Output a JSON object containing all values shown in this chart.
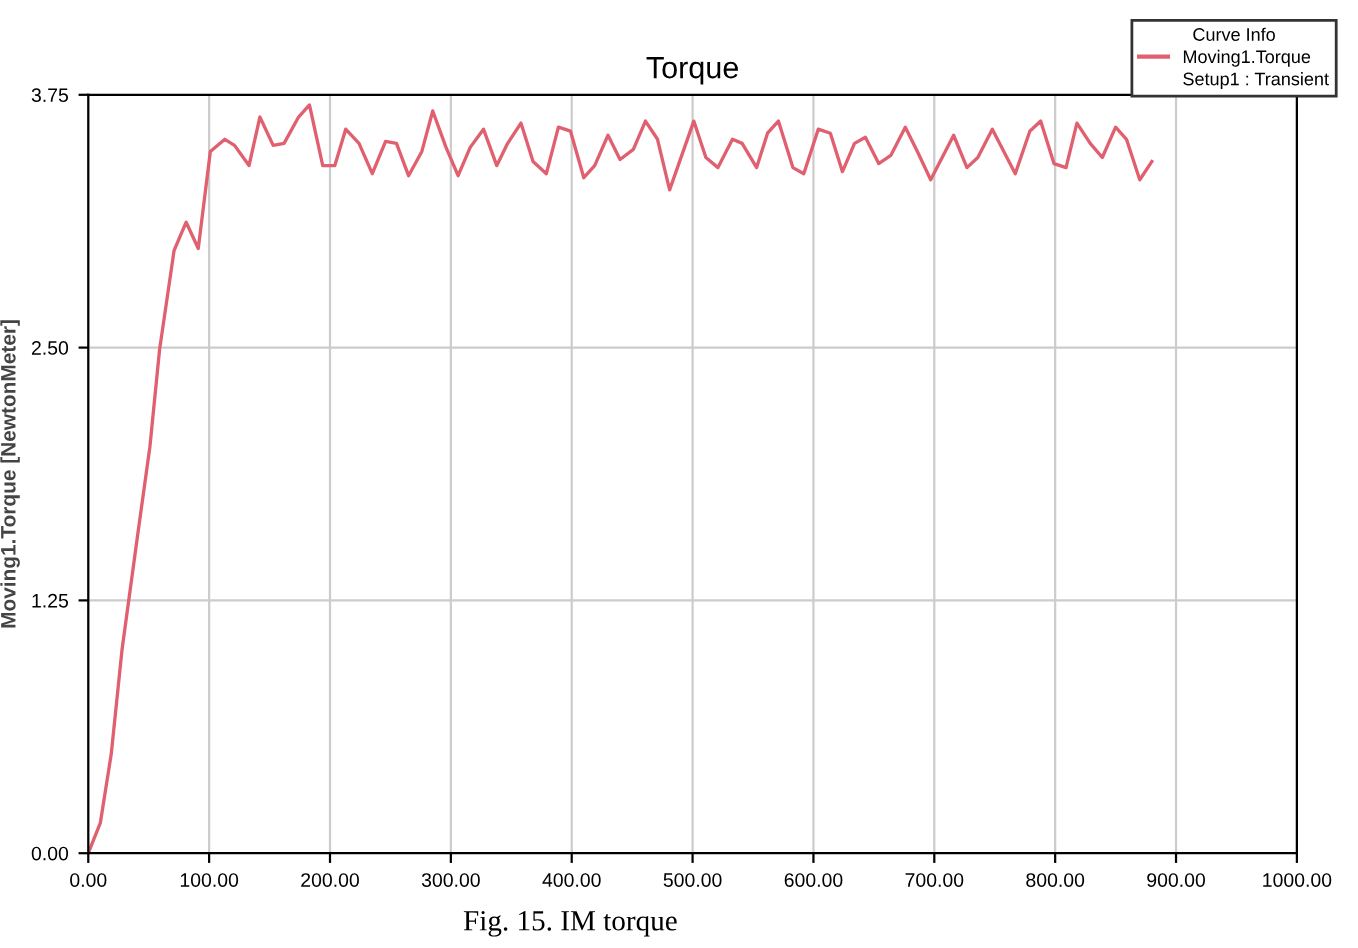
{
  "chart_data": {
    "type": "line",
    "title": "Torque",
    "ylabel": "Moving1.Torque [NewtonMeter]",
    "legend_title": "Curve Info",
    "legend": "top right",
    "grid": true,
    "line_style": "solid",
    "marker": "none",
    "annotations": [
      "Fig. 15. IM torque",
      "Setup1 : Transient"
    ],
    "xlim": [
      0,
      1000
    ],
    "ylim": [
      0,
      3.75
    ],
    "xticks": [
      {
        "value": 0,
        "label": "0.00"
      },
      {
        "value": 100,
        "label": "100.00"
      },
      {
        "value": 200,
        "label": "200.00"
      },
      {
        "value": 300,
        "label": "300.00"
      },
      {
        "value": 400,
        "label": "400.00"
      },
      {
        "value": 500,
        "label": "500.00"
      },
      {
        "value": 600,
        "label": "600.00"
      },
      {
        "value": 700,
        "label": "700.00"
      },
      {
        "value": 800,
        "label": "800.00"
      },
      {
        "value": 900,
        "label": "900.00"
      },
      {
        "value": 1000,
        "label": "1000.00"
      }
    ],
    "yticks": [
      {
        "value": 0,
        "label": "0.00"
      },
      {
        "value": 1.25,
        "label": "1.25"
      },
      {
        "value": 2.5,
        "label": "2.50"
      },
      {
        "value": 3.75,
        "label": "3.75"
      }
    ],
    "series": [
      {
        "name": "Moving1.Torque",
        "color": "#e06070",
        "x": [
          0,
          10,
          19,
          28,
          41,
          51,
          59,
          71,
          81,
          91,
          101,
          113,
          121,
          133,
          142,
          153,
          162,
          174,
          183,
          194,
          204,
          213,
          224,
          235,
          246,
          255,
          265,
          276,
          285,
          296,
          306,
          316,
          327,
          338,
          347,
          358,
          368,
          379,
          389,
          399,
          410,
          419,
          430,
          440,
          451,
          461,
          471,
          481,
          501,
          511,
          521,
          533,
          541,
          553,
          562,
          571,
          583,
          592,
          604,
          614,
          624,
          634,
          643,
          654,
          664,
          676,
          686,
          697,
          716,
          727,
          736,
          748,
          767,
          779,
          788,
          799,
          809,
          818,
          829,
          839,
          850,
          859,
          870,
          880
        ],
        "values": [
          0,
          0.15,
          0.49,
          1.01,
          1.58,
          2.01,
          2.49,
          2.98,
          3.12,
          2.99,
          3.47,
          3.53,
          3.5,
          3.4,
          3.64,
          3.5,
          3.51,
          3.64,
          3.7,
          3.4,
          3.4,
          3.58,
          3.51,
          3.36,
          3.52,
          3.51,
          3.35,
          3.47,
          3.67,
          3.49,
          3.35,
          3.49,
          3.58,
          3.4,
          3.51,
          3.61,
          3.42,
          3.36,
          3.59,
          3.57,
          3.34,
          3.4,
          3.55,
          3.43,
          3.48,
          3.62,
          3.53,
          3.28,
          3.62,
          3.44,
          3.39,
          3.53,
          3.51,
          3.39,
          3.56,
          3.62,
          3.39,
          3.36,
          3.58,
          3.56,
          3.37,
          3.51,
          3.54,
          3.41,
          3.45,
          3.59,
          3.47,
          3.33,
          3.55,
          3.39,
          3.44,
          3.58,
          3.36,
          3.57,
          3.62,
          3.41,
          3.39,
          3.61,
          3.51,
          3.44,
          3.59,
          3.53,
          3.33,
          3.42
        ]
      }
    ]
  }
}
